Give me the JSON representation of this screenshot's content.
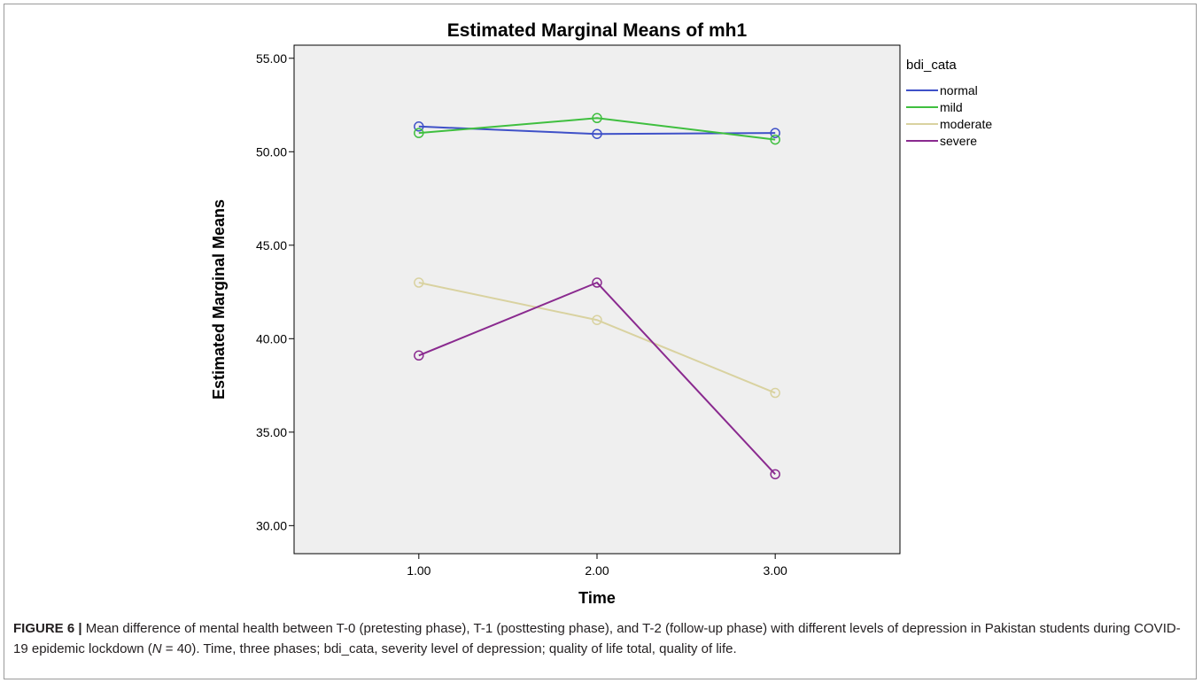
{
  "chart_data": {
    "type": "line",
    "title": "Estimated Marginal Means of mh1",
    "xlabel": "Time",
    "ylabel": "Estimated Marginal Means",
    "x": [
      1,
      2,
      3
    ],
    "x_tick_labels": [
      "1.00",
      "2.00",
      "3.00"
    ],
    "xlim": [
      0.3,
      3.7
    ],
    "ylim": [
      28.5,
      55.7
    ],
    "y_ticks": [
      30,
      35,
      40,
      45,
      50,
      55
    ],
    "y_tick_labels": [
      "30.00",
      "35.00",
      "40.00",
      "45.00",
      "50.00",
      "55.00"
    ],
    "grid": false,
    "markers": "open-circle",
    "legend_title": "bdi_cata",
    "legend_position": "right, outside plot",
    "series": [
      {
        "name": "normal",
        "color": "#3f51c8",
        "values": [
          51.35,
          50.95,
          51.0
        ]
      },
      {
        "name": "mild",
        "color": "#3fbf3f",
        "values": [
          51.0,
          51.8,
          50.65
        ]
      },
      {
        "name": "moderate",
        "color": "#d9d2a0",
        "values": [
          43.0,
          41.0,
          37.1
        ]
      },
      {
        "name": "severe",
        "color": "#8a2a8f",
        "values": [
          39.1,
          43.0,
          32.75
        ]
      }
    ]
  },
  "caption": {
    "label": "FIGURE 6 |",
    "text_1": " Mean difference of mental health between T-0 (pretesting phase), T-1 (posttesting phase), and T-2 (follow-up phase) with different levels of depression in Pakistan students during COVID-19 epidemic lockdown (",
    "n_symbol": "N",
    "text_2": " = 40). Time, three phases; bdi_cata, severity level of depression; quality of life total, quality of life."
  }
}
